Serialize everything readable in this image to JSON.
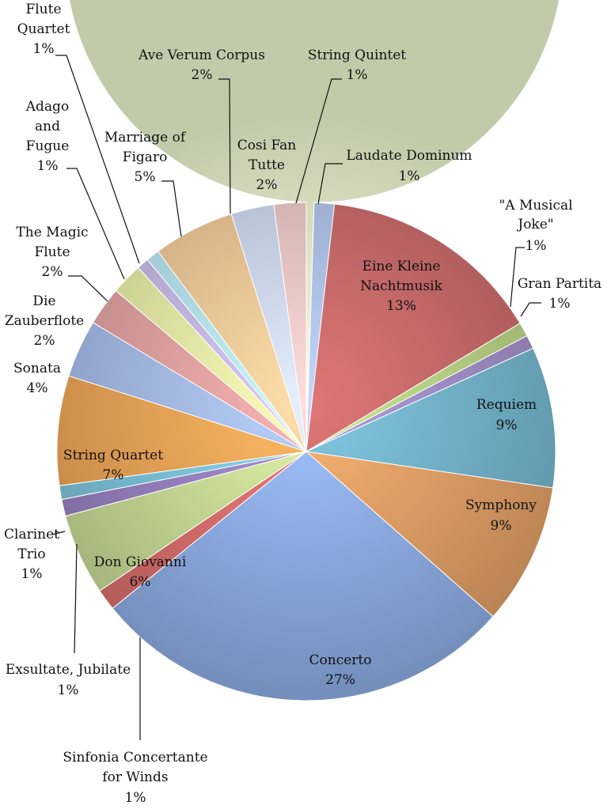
{
  "chart_data": {
    "type": "pie",
    "title": "",
    "slices": [
      {
        "name": "Laudate Dominum",
        "value": 1,
        "label": "1%",
        "color": "#aec1e6"
      },
      {
        "name": "Eine Kleine Nachtmusik",
        "value": 13,
        "label": "13%",
        "color": "#c86a6a"
      },
      {
        "name": "\"A Musical Joke\"",
        "value": 1,
        "label": "1%",
        "color": "#b7d184"
      },
      {
        "name": "Gran Partita",
        "value": 1,
        "label": "1%",
        "color": "#a08ec6"
      },
      {
        "name": "Requiem",
        "value": 9,
        "label": "9%",
        "color": "#74b4cc"
      },
      {
        "name": "Symphony",
        "value": 9,
        "label": "9%",
        "color": "#e2a066"
      },
      {
        "name": "Concerto",
        "value": 27,
        "label": "27%",
        "color": "#8faee6"
      },
      {
        "name": "Sinfonia Concertante for Winds",
        "value": 1,
        "label": "1%",
        "color": "#d9706e"
      },
      {
        "name": "Don Giovanni",
        "value": 6,
        "label": "6%",
        "color": "#c8dc96"
      },
      {
        "name": "Exsultate, Jubilate",
        "value": 1,
        "label": "1%",
        "color": "#9a82c2"
      },
      {
        "name": "Clarinet Trio",
        "value": 1,
        "label": "1%",
        "color": "#7cc4dc"
      },
      {
        "name": "String Quartet",
        "value": 7,
        "label": "7%",
        "color": "#f1a658"
      },
      {
        "name": "Sonata",
        "value": 4,
        "label": "4%",
        "color": "#a6bcea"
      },
      {
        "name": "Die Zauberflote",
        "value": 2,
        "label": "2%",
        "color": "#e2a2a2"
      },
      {
        "name": "The Magic Flute",
        "value": 2,
        "label": "2%",
        "color": "#e6f0a6"
      },
      {
        "name": "Adago and Fugue",
        "value": 1,
        "label": "1%",
        "color": "#c6bae4"
      },
      {
        "name": "Flute Quartet",
        "value": 1,
        "label": "1%",
        "color": "#b6e2f4"
      },
      {
        "name": "Marriage of Figaro",
        "value": 5,
        "label": "5%",
        "color": "#f4c898"
      },
      {
        "name": "Ave Verum Corpus",
        "value": 2,
        "label": "2%",
        "color": "#cdd6f4"
      },
      {
        "name": "Cosi Fan Tutte",
        "value": 2,
        "label": "2%",
        "color": "#f0c6c6"
      },
      {
        "name": "String Quintet",
        "value": 1,
        "label": "1%",
        "color": "#eef6ce"
      }
    ],
    "legend": "none",
    "data_labels": "category name and percentage"
  }
}
